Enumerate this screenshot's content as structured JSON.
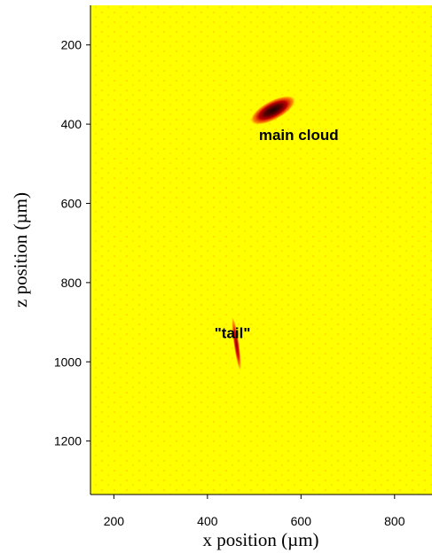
{
  "chart_data": {
    "type": "heatmap",
    "title": "",
    "xlabel": "x position (µm)",
    "ylabel": "z position (µm)",
    "xlim": [
      150,
      880
    ],
    "ylim": [
      100,
      1335
    ],
    "y_inverted": true,
    "x_ticks": [
      200,
      400,
      600,
      800
    ],
    "y_ticks": [
      200,
      400,
      600,
      800,
      1000,
      1200
    ],
    "grid": false,
    "legend": "none",
    "colors": {
      "background": "#ffff00",
      "mid": "#ff2000",
      "peak": "#1a0000"
    },
    "features": [
      {
        "name": "main cloud",
        "x": 540,
        "z": 365,
        "width": 110,
        "height": 50,
        "angle": -28,
        "intensity": 1.0
      },
      {
        "name": "tail",
        "x": 462,
        "z": 955,
        "width": 12,
        "height": 140,
        "angle": -8,
        "intensity": 0.75
      }
    ],
    "annotations": [
      {
        "text": "main cloud",
        "x": 510,
        "z": 440
      },
      {
        "text": "\"tail\"",
        "x": 415,
        "z": 940
      }
    ]
  }
}
